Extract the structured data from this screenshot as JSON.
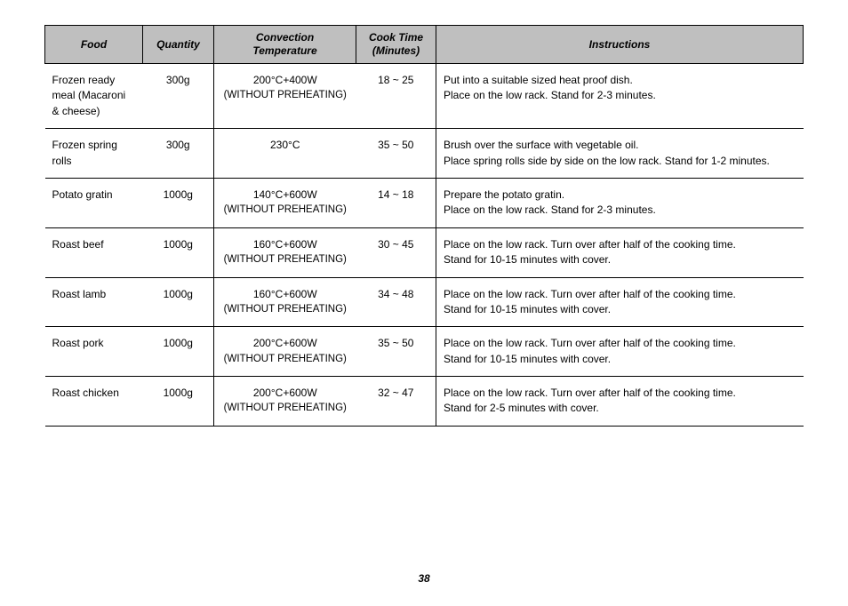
{
  "columns": {
    "food": "Food",
    "quantity": "Quantity",
    "temperature": "Convection\nTemperature",
    "time": "Cook Time\n(Minutes)",
    "instructions": "Instructions"
  },
  "rows": [
    {
      "food": "Frozen ready meal (Macaroni & cheese)",
      "quantity": "300g",
      "temp_main": "200°C+400W",
      "temp_sub": "(WITHOUT PREHEATING)",
      "time": "18 ~ 25",
      "inst1": "Put into a suitable sized heat proof dish.",
      "inst2": "Place on the low rack. Stand for 2-3 minutes."
    },
    {
      "food": "Frozen spring rolls",
      "quantity": "300g",
      "temp_main": "230°C",
      "temp_sub": "",
      "time": "35 ~ 50",
      "inst1": "Brush over the surface with vegetable oil.",
      "inst2": "Place spring rolls side by side on the low rack. Stand for 1-2 minutes."
    },
    {
      "food": "Potato gratin",
      "quantity": "1000g",
      "temp_main": "140°C+600W",
      "temp_sub": "(WITHOUT PREHEATING)",
      "time": "14 ~ 18",
      "inst1": "Prepare the potato gratin.",
      "inst2": "Place on the low rack. Stand for 2-3 minutes."
    },
    {
      "food": "Roast beef",
      "quantity": "1000g",
      "temp_main": "160°C+600W",
      "temp_sub": "(WITHOUT PREHEATING)",
      "time": "30 ~ 45",
      "inst1": "Place on the low rack.  Turn over after half of the cooking time.",
      "inst2": "Stand for 10-15 minutes with cover."
    },
    {
      "food": "Roast lamb",
      "quantity": "1000g",
      "temp_main": "160°C+600W",
      "temp_sub": "(WITHOUT PREHEATING)",
      "time": "34 ~ 48",
      "inst1": "Place on the low rack.  Turn over after half of the cooking time.",
      "inst2": "Stand for 10-15 minutes with cover."
    },
    {
      "food": "Roast pork",
      "quantity": "1000g",
      "temp_main": "200°C+600W",
      "temp_sub": "(WITHOUT PREHEATING)",
      "time": "35 ~ 50",
      "inst1": "Place on the low rack.  Turn over after half of the cooking time.",
      "inst2": "Stand for 10-15 minutes with cover."
    },
    {
      "food": "Roast chicken",
      "quantity": "1000g",
      "temp_main": "200°C+600W",
      "temp_sub": "(WITHOUT PREHEATING)",
      "time": "32 ~ 47",
      "inst1": "Place on the low rack.  Turn over after half of the cooking time.",
      "inst2": "Stand for 2-5 minutes with cover."
    }
  ],
  "page_number": "38"
}
